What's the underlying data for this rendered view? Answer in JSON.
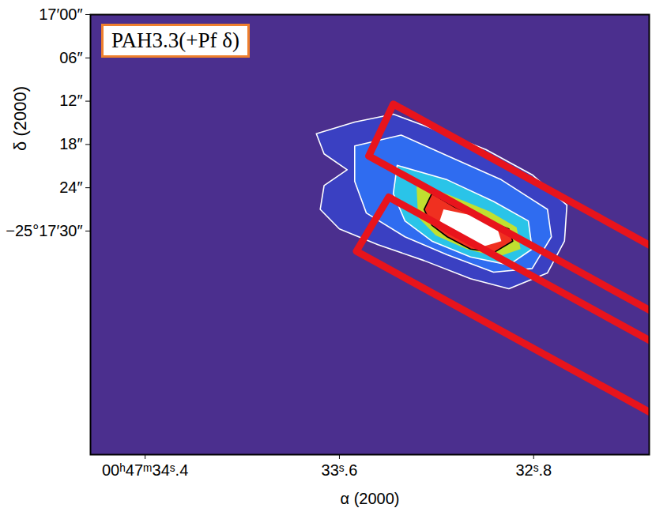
{
  "chart_data": {
    "type": "image",
    "annotation": "PAH3.3(+Pf δ)",
    "xlabel": "α (2000)",
    "ylabel": "δ (2000)",
    "color": "#4b2f8e",
    "xlim": [
      34.625,
      32.324
    ],
    "xticks": [
      {
        "value": 34.4,
        "label": "00ʰ47ᵐ34ˢ.4"
      },
      {
        "value": 33.6,
        "label": "33ˢ.6"
      },
      {
        "value": 32.8,
        "label": "32ˢ.8"
      }
    ],
    "ylim": [
      0,
      61
    ],
    "yticks": [
      {
        "value": 0,
        "label": "17′00″"
      },
      {
        "value": 6,
        "label": "06″"
      },
      {
        "value": 12,
        "label": "12″"
      },
      {
        "value": 18,
        "label": "18″"
      },
      {
        "value": 24,
        "label": "24″"
      },
      {
        "value": 30,
        "label": "−25°17′30″"
      }
    ],
    "series": [
      {
        "type": "contour",
        "colors": [
          "#3a40c2",
          "#2f6cf0",
          "#2ac4e8",
          "#c0e030",
          "#f03020",
          "#ffffff"
        ],
        "polygons": [
          [
            [
              33.695,
              16.5
            ],
            [
              33.537,
              14.9
            ],
            [
              33.378,
              13.8
            ],
            [
              33.203,
              16.0
            ],
            [
              32.997,
              18.7
            ],
            [
              32.806,
              22.2
            ],
            [
              32.663,
              26.4
            ],
            [
              32.673,
              31.4
            ],
            [
              32.743,
              35.8
            ],
            [
              32.902,
              38.0
            ],
            [
              33.06,
              36.6
            ],
            [
              33.251,
              34.1
            ],
            [
              33.441,
              31.9
            ],
            [
              33.6,
              29.7
            ],
            [
              33.679,
              27.0
            ],
            [
              33.663,
              23.7
            ],
            [
              33.568,
              21.5
            ],
            [
              33.663,
              19.3
            ]
          ],
          [
            [
              33.537,
              18.2
            ],
            [
              33.346,
              16.7
            ],
            [
              33.14,
              19.8
            ],
            [
              32.933,
              22.9
            ],
            [
              32.743,
              27.0
            ],
            [
              32.727,
              30.8
            ],
            [
              32.806,
              35.2
            ],
            [
              32.965,
              35.7
            ],
            [
              33.156,
              33.3
            ],
            [
              33.33,
              30.8
            ],
            [
              33.489,
              27.5
            ],
            [
              33.537,
              23.1
            ]
          ],
          [
            [
              33.362,
              20.9
            ],
            [
              33.156,
              22.9
            ],
            [
              32.965,
              25.9
            ],
            [
              32.822,
              28.6
            ],
            [
              32.806,
              32.5
            ],
            [
              32.902,
              34.7
            ],
            [
              33.06,
              33.6
            ],
            [
              33.219,
              31.4
            ],
            [
              33.33,
              28.6
            ],
            [
              33.378,
              24.8
            ]
          ],
          [
            [
              33.283,
              23.3
            ],
            [
              33.14,
              25.1
            ],
            [
              32.981,
              27.3
            ],
            [
              32.87,
              29.5
            ],
            [
              32.854,
              32.5
            ],
            [
              32.949,
              33.6
            ],
            [
              33.076,
              32.5
            ],
            [
              33.203,
              30.6
            ],
            [
              33.276,
              28.1
            ]
          ],
          [
            [
              33.219,
              24.8
            ],
            [
              33.124,
              26.7
            ],
            [
              33.029,
              28.1
            ],
            [
              32.902,
              29.7
            ],
            [
              32.886,
              31.4
            ],
            [
              32.965,
              33.0
            ],
            [
              33.06,
              32.5
            ],
            [
              33.156,
              30.8
            ],
            [
              33.219,
              29.2
            ],
            [
              33.251,
              27.0
            ]
          ],
          [
            [
              33.171,
              27.0
            ],
            [
              33.06,
              27.8
            ],
            [
              32.949,
              29.7
            ],
            [
              32.933,
              31.4
            ],
            [
              33.013,
              32.2
            ],
            [
              33.124,
              30.6
            ],
            [
              33.187,
              28.6
            ]
          ]
        ]
      },
      {
        "type": "outline",
        "color": "#e8141c",
        "polygons": [
          [
            [
              33.378,
              12.4
            ],
            [
              31.759,
              42.4
            ],
            [
              31.759,
              51.4
            ],
            [
              33.479,
              19.6
            ]
          ],
          [
            [
              33.397,
              25.3
            ],
            [
              31.759,
              55.6
            ],
            [
              31.759,
              65.5
            ],
            [
              33.53,
              32.8
            ]
          ]
        ]
      }
    ]
  }
}
